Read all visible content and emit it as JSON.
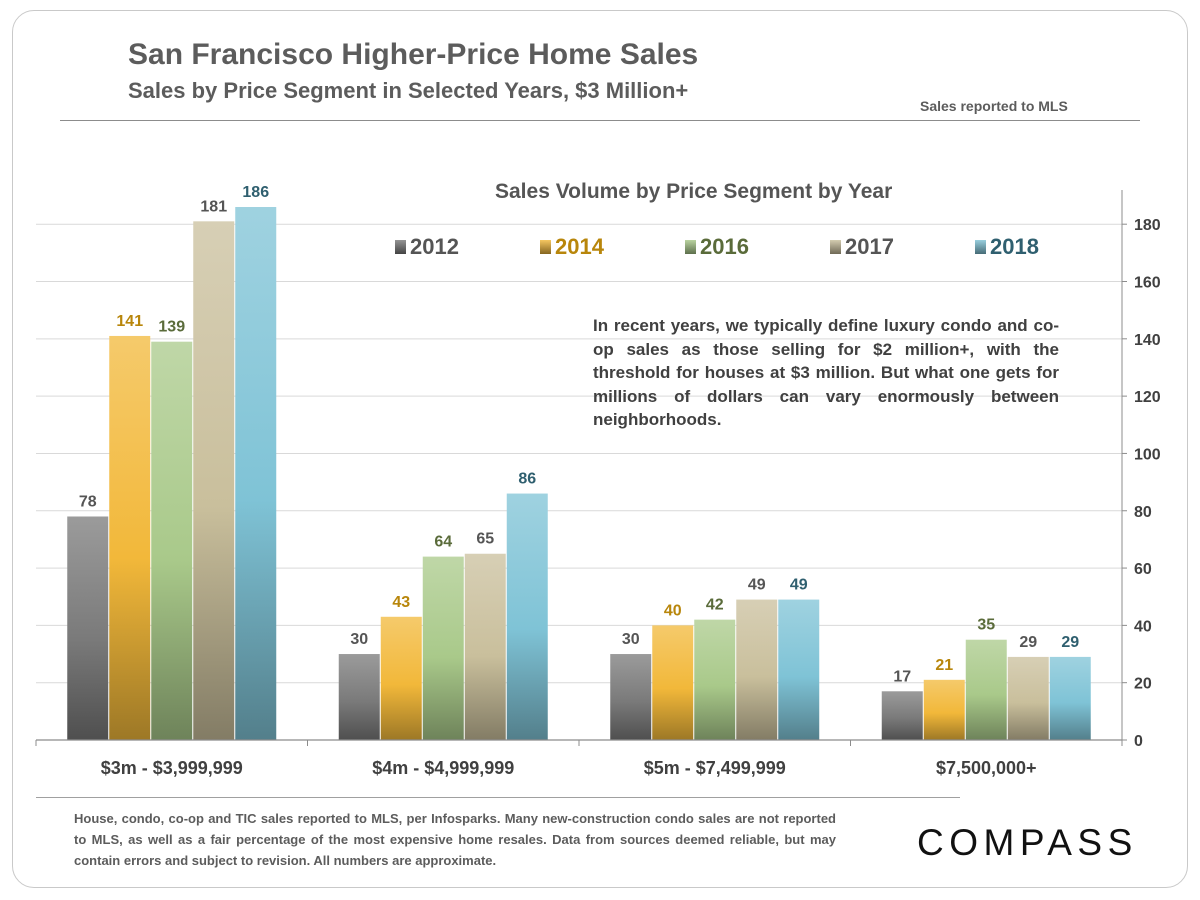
{
  "header": {
    "title": "San Francisco Higher-Price Home Sales",
    "subtitle": "Sales by Price Segment in Selected Years, $3 Million+",
    "source_note": "Sales reported to MLS"
  },
  "annotation": "In recent years, we typically define luxury condo and co-op sales as those selling for $2 million+, with the threshold for houses at $3 million. But what one gets for millions of dollars can vary enormously between neighborhoods.",
  "footnote": "House, condo, co-op and TIC sales reported to MLS, per Infosparks. Many new-construction condo sales are not reported to MLS, as well as a fair percentage of the most expensive home resales. Data from sources deemed reliable, but may contain errors and subject to revision.  All numbers are approximate.",
  "brand": {
    "logo_text": "COMPASS"
  },
  "chart_data": {
    "type": "bar",
    "title": "Sales Volume by Price Segment by Year",
    "categories": [
      "$3m  - $3,999,999",
      "$4m  - $4,999,999",
      "$5m  - $7,499,999",
      "$7,500,000+"
    ],
    "series": [
      {
        "name": "2012",
        "values": [
          78,
          30,
          30,
          17
        ],
        "color": "#7a7a7a",
        "label_color": "#555555"
      },
      {
        "name": "2014",
        "values": [
          141,
          43,
          40,
          21
        ],
        "color": "#f2b83a",
        "label_color": "#b8860b"
      },
      {
        "name": "2016",
        "values": [
          139,
          64,
          42,
          35
        ],
        "color": "#a9c98a",
        "label_color": "#5a6b3a"
      },
      {
        "name": "2017",
        "values": [
          181,
          65,
          49,
          29
        ],
        "color": "#c9bf9c",
        "label_color": "#555555"
      },
      {
        "name": "2018",
        "values": [
          186,
          86,
          49,
          29
        ],
        "color": "#7fc3d6",
        "label_color": "#2f5f6f"
      }
    ],
    "y_axis": {
      "position": "right",
      "ticks": [
        0,
        20,
        40,
        60,
        80,
        100,
        120,
        140,
        160,
        180
      ]
    },
    "ylim": [
      0,
      190
    ],
    "grid": true,
    "legend_position": "top"
  }
}
